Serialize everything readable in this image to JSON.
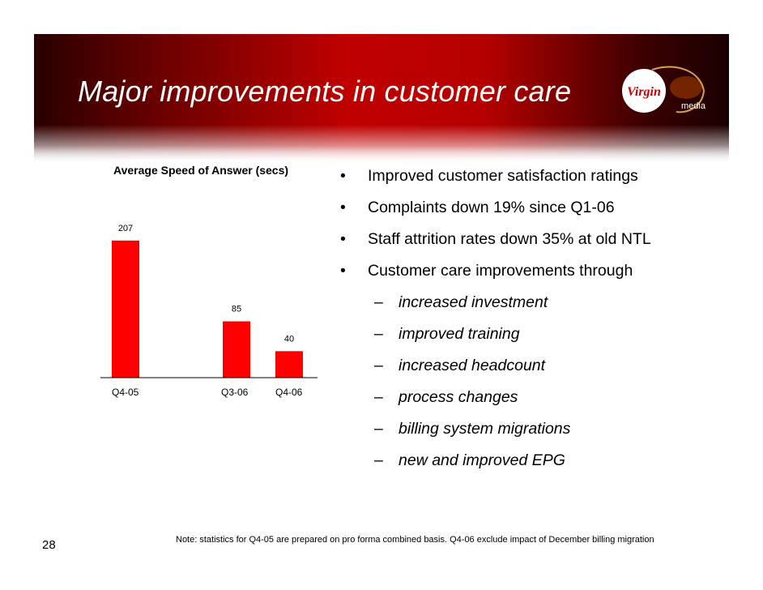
{
  "slide": {
    "title": "Major improvements in customer care",
    "page_number": "28",
    "footnote": "Note: statistics for Q4-05 are prepared on pro forma combined basis. Q4-06 exclude impact of December billing migration",
    "logo_text": "Virgin media",
    "bullets": [
      "Improved customer satisfaction ratings",
      "Complaints down 19% since Q1-06",
      "Staff attrition rates down 35% at old NTL",
      "Customer care improvements through"
    ],
    "sub_bullets": [
      "increased investment",
      "improved training",
      "increased headcount",
      "process changes",
      "billing system migrations",
      "new and improved EPG"
    ]
  },
  "colors": {
    "bar": "#ff0000",
    "header_dark": "#2a0000",
    "header_red": "#c00000"
  },
  "chart_data": {
    "type": "bar",
    "title": "Average Speed of Answer (secs)",
    "categories": [
      "Q4-05",
      "Q3-06",
      "Q4-06"
    ],
    "values": [
      207,
      85,
      40
    ],
    "xlabel": "",
    "ylabel": "",
    "ylim": [
      0,
      230
    ],
    "grid": false,
    "legend": "none"
  }
}
